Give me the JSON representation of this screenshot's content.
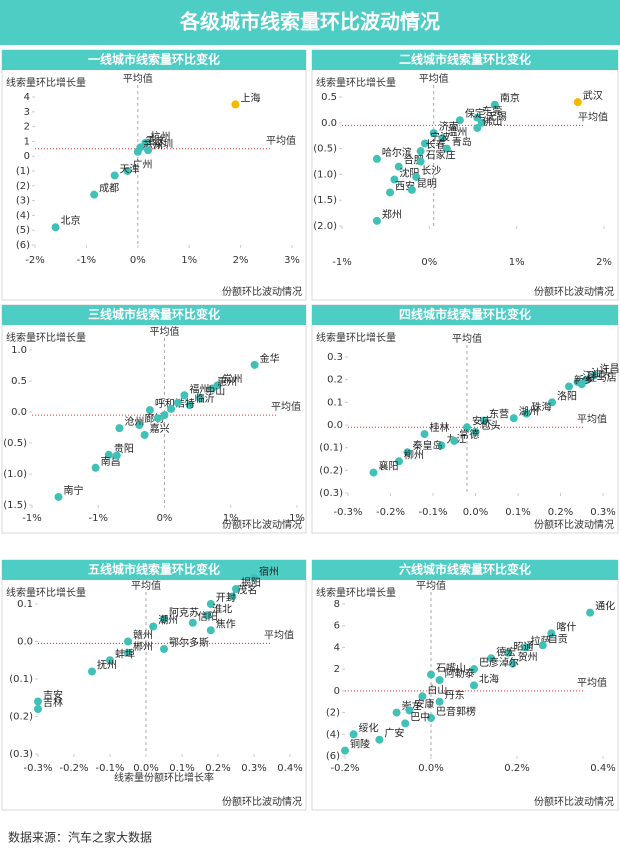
{
  "title": "各级城市线索量环比波动情况",
  "source": "数据来源：汽车之家大数据",
  "chart_data": [
    {
      "type": "scatter",
      "title": "一线城市线索量环比变化",
      "ylabel": "线索量环比增长量",
      "xlabel": "份额环比波动情况",
      "average": {
        "label": "平均值",
        "x": 0.0,
        "y": 0.5
      },
      "xlim": [
        -2,
        3
      ],
      "ylim": [
        -6,
        4
      ],
      "xticks": [
        {
          "value": -2,
          "label": "-2%"
        },
        {
          "value": -1,
          "label": "-1%"
        },
        {
          "value": 0,
          "label": "0%"
        },
        {
          "value": 1,
          "label": "1%"
        },
        {
          "value": 2,
          "label": "2%"
        },
        {
          "value": 3,
          "label": "3%"
        }
      ],
      "yticks": [
        4,
        3,
        2,
        1,
        0,
        {
          "value": -1,
          "label": "(1)"
        },
        {
          "value": -2,
          "label": "(2)"
        },
        {
          "value": -3,
          "label": "(3)"
        },
        {
          "value": -4,
          "label": "(4)"
        },
        {
          "value": -5,
          "label": "(5)"
        },
        {
          "value": -6,
          "label": "(6)"
        }
      ],
      "color": "#3fc1b7",
      "negative_tick_color": "#e0302a",
      "points": [
        {
          "label": "上海",
          "x": 1.9,
          "y": 3.5,
          "color": "#f5b800"
        },
        {
          "label": "重庆",
          "x": 0.05,
          "y": 0.6
        },
        {
          "label": "杭州",
          "x": 0.15,
          "y": 0.9
        },
        {
          "label": "苏州",
          "x": 0.0,
          "y": 0.3
        },
        {
          "label": "深圳",
          "x": 0.2,
          "y": 0.4
        },
        {
          "label": "广州",
          "x": -0.2,
          "y": -1.0
        },
        {
          "label": "天津",
          "x": -0.45,
          "y": -1.3
        },
        {
          "label": "成都",
          "x": -0.85,
          "y": -2.6
        },
        {
          "label": "北京",
          "x": -1.6,
          "y": -4.8
        }
      ]
    },
    {
      "type": "scatter",
      "title": "二线城市线索量环比变化",
      "ylabel": "线索量环比增长量",
      "xlabel": "份额环比波动情况",
      "average": {
        "label": "平均值",
        "x": 0.05,
        "y": -0.05
      },
      "xlim": [
        -1,
        2
      ],
      "ylim": [
        -2,
        0.5
      ],
      "xticks": [
        {
          "value": -1,
          "label": "-1%"
        },
        {
          "value": 0,
          "label": "0%"
        },
        {
          "value": 1,
          "label": "1%"
        },
        {
          "value": 2,
          "label": "2%"
        }
      ],
      "yticks": [
        0.5,
        {
          "value": 0,
          "label": "0.0"
        },
        {
          "value": -0.5,
          "label": "(0.5)"
        },
        {
          "value": -1,
          "label": "(1.0)"
        },
        {
          "value": -1.5,
          "label": "(1.5)"
        },
        {
          "value": -2,
          "label": "(2.0)"
        }
      ],
      "color": "#3fc1b7",
      "negative_tick_color": "#e0302a",
      "points": [
        {
          "label": "武汉",
          "x": 1.7,
          "y": 0.4,
          "color": "#f5b800"
        },
        {
          "label": "南京",
          "x": 0.75,
          "y": 0.35
        },
        {
          "label": "东莞",
          "x": 0.55,
          "y": 0.1
        },
        {
          "label": "无锡",
          "x": 0.6,
          "y": 0.0
        },
        {
          "label": "佛山",
          "x": 0.55,
          "y": -0.1
        },
        {
          "label": "保定",
          "x": 0.35,
          "y": 0.05
        },
        {
          "label": "济南",
          "x": 0.05,
          "y": -0.2
        },
        {
          "label": "温州",
          "x": 0.15,
          "y": -0.3
        },
        {
          "label": "宁波",
          "x": -0.05,
          "y": -0.4
        },
        {
          "label": "长春",
          "x": -0.1,
          "y": -0.55
        },
        {
          "label": "青岛",
          "x": 0.2,
          "y": -0.5
        },
        {
          "label": "哈尔滨",
          "x": -0.6,
          "y": -0.7
        },
        {
          "label": "合肥",
          "x": -0.35,
          "y": -0.85
        },
        {
          "label": "石家庄",
          "x": -0.1,
          "y": -0.75
        },
        {
          "label": "沈阳",
          "x": -0.4,
          "y": -1.1
        },
        {
          "label": "长沙",
          "x": -0.15,
          "y": -1.05
        },
        {
          "label": "西安",
          "x": -0.45,
          "y": -1.35
        },
        {
          "label": "昆明",
          "x": -0.2,
          "y": -1.3
        },
        {
          "label": "郑州",
          "x": -0.6,
          "y": -1.9
        }
      ]
    },
    {
      "type": "scatter",
      "title": "三线城市线索量环比变化",
      "ylabel": "线索量环比增长量",
      "xlabel": "份额环比波动情况",
      "average": {
        "label": "平均值",
        "x": 0.0,
        "y": -0.05
      },
      "xlim": [
        -1,
        1
      ],
      "ylim": [
        -1.5,
        1
      ],
      "xticks": [
        {
          "value": -1,
          "label": "-1%"
        },
        {
          "value": -0.5,
          "label": "-1%"
        },
        {
          "value": 0,
          "label": "0%"
        },
        {
          "value": 0.5,
          "label": "1%"
        },
        {
          "value": 1,
          "label": "1%"
        }
      ],
      "yticks": [
        {
          "value": 1,
          "label": "1.0"
        },
        0.5,
        {
          "value": 0,
          "label": "0.0"
        },
        {
          "value": -0.5,
          "label": "(0.5)"
        },
        {
          "value": -1,
          "label": "(1.0)"
        },
        {
          "value": -1.5,
          "label": "(1.5)"
        }
      ],
      "color": "#3fc1b7",
      "negative_tick_color": "#e0302a",
      "points": [
        {
          "label": "金华",
          "x": 0.68,
          "y": 0.76
        },
        {
          "label": "常州",
          "x": 0.4,
          "y": 0.43
        },
        {
          "label": "惠州",
          "x": 0.36,
          "y": 0.38
        },
        {
          "label": "中山",
          "x": 0.27,
          "y": 0.23
        },
        {
          "label": "福州",
          "x": 0.15,
          "y": 0.27
        },
        {
          "label": "临沂",
          "x": 0.19,
          "y": 0.11
        },
        {
          "label": "呼和浩特",
          "x": -0.11,
          "y": 0.03
        },
        {
          "label": "廊坊",
          "x": -0.19,
          "y": -0.21
        },
        {
          "label": "沧州",
          "x": -0.34,
          "y": -0.26
        },
        {
          "label": "嘉兴",
          "x": -0.15,
          "y": -0.37
        },
        {
          "label": "贵阳",
          "x": -0.42,
          "y": -0.69
        },
        {
          "label": "南昌",
          "x": -0.52,
          "y": -0.9
        },
        {
          "label": "南宁",
          "x": -0.8,
          "y": -1.37
        },
        {
          "x": 0.05,
          "y": 0.05
        },
        {
          "x": 0.0,
          "y": -0.05
        },
        {
          "x": -0.05,
          "y": -0.1
        },
        {
          "x": 0.1,
          "y": 0.15
        },
        {
          "x": -0.36,
          "y": -0.7
        }
      ]
    },
    {
      "type": "scatter",
      "title": "四线城市线索量环比变化",
      "ylabel": "线索量环比增长量",
      "xlabel": "份额环比波动情况",
      "average": {
        "label": "平均值",
        "x": -0.02,
        "y": -0.01
      },
      "xlim": [
        -0.3,
        0.3
      ],
      "ylim": [
        -0.3,
        0.3
      ],
      "xticks": [
        {
          "value": -0.3,
          "label": "-0.3%"
        },
        {
          "value": -0.2,
          "label": "-0.2%"
        },
        {
          "value": -0.1,
          "label": "-0.1%"
        },
        {
          "value": 0,
          "label": "0.0%"
        },
        {
          "value": 0.1,
          "label": "0.1%"
        },
        {
          "value": 0.2,
          "label": "0.2%"
        },
        {
          "value": 0.3,
          "label": "0.3%"
        }
      ],
      "yticks": [
        0.3,
        0.2,
        0.1,
        {
          "value": 0,
          "label": "0.0"
        },
        {
          "value": -0.1,
          "label": "(0.1)"
        },
        {
          "value": -0.2,
          "label": "(0.2)"
        },
        {
          "value": -0.3,
          "label": "(0.3)"
        }
      ],
      "color": "#3fc1b7",
      "negative_tick_color": "#e0302a",
      "points": [
        {
          "label": "许昌",
          "x": 0.28,
          "y": 0.22
        },
        {
          "label": "汕头",
          "x": 0.26,
          "y": 0.2
        },
        {
          "label": "江门",
          "x": 0.24,
          "y": 0.19
        },
        {
          "label": "新乡",
          "x": 0.22,
          "y": 0.17
        },
        {
          "label": "洛阳",
          "x": 0.18,
          "y": 0.1
        },
        {
          "label": "驻马店",
          "x": 0.25,
          "y": 0.18
        },
        {
          "label": "珠海",
          "x": 0.12,
          "y": 0.05
        },
        {
          "label": "东营",
          "x": 0.02,
          "y": 0.02
        },
        {
          "label": "湖州",
          "x": 0.09,
          "y": 0.03
        },
        {
          "label": "安庆",
          "x": -0.02,
          "y": -0.01
        },
        {
          "label": "包头",
          "x": 0.0,
          "y": -0.03
        },
        {
          "label": "桂林",
          "x": -0.12,
          "y": -0.04
        },
        {
          "label": "九江",
          "x": -0.08,
          "y": -0.09
        },
        {
          "label": "常德",
          "x": -0.05,
          "y": -0.07
        },
        {
          "label": "秦皇岛",
          "x": -0.16,
          "y": -0.12
        },
        {
          "label": "柳州",
          "x": -0.18,
          "y": -0.16
        },
        {
          "label": "襄阳",
          "x": -0.24,
          "y": -0.21
        }
      ]
    },
    {
      "type": "scatter",
      "title": "五线城市线索量环比变化",
      "ylabel": "线索量环比增长量",
      "xlabel": "份额环比波动情况",
      "inner_xlabel": "线索量份额环比增长率",
      "average": {
        "label": "平均值",
        "x": 0.0,
        "y": -0.005
      },
      "xlim": [
        -0.3,
        0.4
      ],
      "ylim": [
        -0.3,
        0.2
      ],
      "xticks": [
        {
          "value": -0.3,
          "label": "-0.3%"
        },
        {
          "value": -0.2,
          "label": "-0.2%"
        },
        {
          "value": -0.1,
          "label": "-0.1%"
        },
        {
          "value": 0,
          "label": "0.0%"
        },
        {
          "value": 0.1,
          "label": "0.1%"
        },
        {
          "value": 0.2,
          "label": "0.2%"
        },
        {
          "value": 0.3,
          "label": "0.3%"
        },
        {
          "value": 0.4,
          "label": "0.4%"
        }
      ],
      "yticks": [
        0.1,
        {
          "value": 0,
          "label": "0.0"
        },
        {
          "value": -0.1,
          "label": "(0.1)"
        },
        {
          "value": -0.2,
          "label": "(0.2)"
        },
        {
          "value": -0.3,
          "label": "(0.3)"
        }
      ],
      "color": "#3fc1b7",
      "negative_tick_color": "#e0302a",
      "points": [
        {
          "label": "宿州",
          "x": 0.3,
          "y": 0.17
        },
        {
          "label": "揭阳",
          "x": 0.25,
          "y": 0.14
        },
        {
          "label": "茂名",
          "x": 0.24,
          "y": 0.12
        },
        {
          "label": "开封",
          "x": 0.18,
          "y": 0.1
        },
        {
          "label": "淮北",
          "x": 0.17,
          "y": 0.07
        },
        {
          "label": "信阳",
          "x": 0.13,
          "y": 0.05
        },
        {
          "label": "阿克苏",
          "x": 0.05,
          "y": 0.06
        },
        {
          "label": "焦作",
          "x": 0.18,
          "y": 0.03
        },
        {
          "label": "潮州",
          "x": 0.02,
          "y": 0.04
        },
        {
          "label": "鄂尔多斯",
          "x": 0.05,
          "y": -0.02
        },
        {
          "label": "郴州",
          "x": -0.05,
          "y": -0.03
        },
        {
          "label": "赣州",
          "x": -0.05,
          "y": 0.0
        },
        {
          "label": "蚌埠",
          "x": -0.1,
          "y": -0.05
        },
        {
          "label": "抚州",
          "x": -0.15,
          "y": -0.08
        },
        {
          "label": "吉安",
          "x": -0.3,
          "y": -0.16
        },
        {
          "label": "吉林",
          "x": -0.3,
          "y": -0.18
        }
      ]
    },
    {
      "type": "scatter",
      "title": "六线城市线索量环比变化",
      "ylabel": "线索量环比增长量",
      "xlabel": "份额环比波动情况",
      "average": {
        "label": "平均值",
        "x": 0.0,
        "y": 0.0
      },
      "xlim": [
        -0.2,
        0.4
      ],
      "ylim": [
        -6,
        8
      ],
      "xticks": [
        {
          "value": -0.2,
          "label": "-0.2%"
        },
        {
          "value": 0,
          "label": "0.0%"
        },
        {
          "value": 0.2,
          "label": "0.2%"
        },
        {
          "value": 0.4,
          "label": "0.4%"
        }
      ],
      "yticks": [
        8,
        6,
        4,
        2,
        0,
        {
          "value": -2,
          "label": "(2)"
        },
        {
          "value": -4,
          "label": "(4)"
        },
        {
          "value": -6,
          "label": "(6)"
        }
      ],
      "color": "#3fc1b7",
      "negative_tick_color": "#e0302a",
      "points": [
        {
          "label": "通化",
          "x": 0.37,
          "y": 7.2
        },
        {
          "label": "喀什",
          "x": 0.28,
          "y": 5.3
        },
        {
          "label": "拉萨",
          "x": 0.22,
          "y": 4.0
        },
        {
          "label": "自贡",
          "x": 0.26,
          "y": 4.2
        },
        {
          "label": "贺州",
          "x": 0.19,
          "y": 2.5
        },
        {
          "label": "昭通",
          "x": 0.18,
          "y": 3.5
        },
        {
          "label": "德宏",
          "x": 0.14,
          "y": 3.0
        },
        {
          "label": "巴彦淖尔",
          "x": 0.1,
          "y": 2.0
        },
        {
          "label": "石嘴山",
          "x": 0.0,
          "y": 1.5
        },
        {
          "label": "阿勒泰",
          "x": 0.02,
          "y": 1.0
        },
        {
          "label": "北海",
          "x": 0.1,
          "y": 0.5
        },
        {
          "label": "白山",
          "x": -0.02,
          "y": -0.5
        },
        {
          "label": "丹东",
          "x": 0.02,
          "y": -1.0
        },
        {
          "label": "崇左",
          "x": -0.08,
          "y": -2.0
        },
        {
          "label": "安康",
          "x": -0.05,
          "y": -1.8
        },
        {
          "label": "巴音郭楞",
          "x": 0.0,
          "y": -2.5
        },
        {
          "label": "巴中",
          "x": -0.06,
          "y": -3.0
        },
        {
          "label": "绥化",
          "x": -0.18,
          "y": -4.0
        },
        {
          "label": "广安",
          "x": -0.12,
          "y": -4.5
        },
        {
          "label": "铜陵",
          "x": -0.2,
          "y": -5.5
        }
      ]
    }
  ]
}
